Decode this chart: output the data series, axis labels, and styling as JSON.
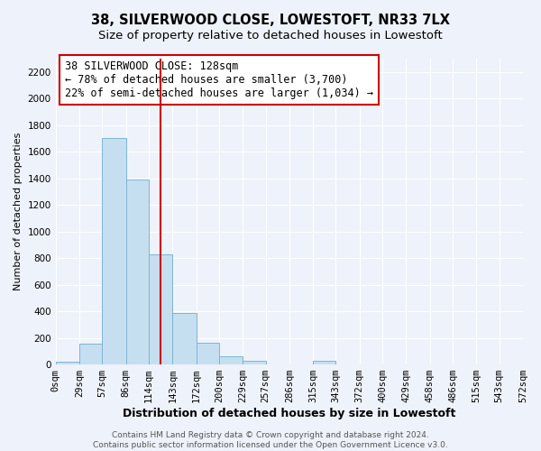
{
  "title": "38, SILVERWOOD CLOSE, LOWESTOFT, NR33 7LX",
  "subtitle": "Size of property relative to detached houses in Lowestoft",
  "xlabel": "Distribution of detached houses by size in Lowestoft",
  "ylabel": "Number of detached properties",
  "bar_edges": [
    0,
    29,
    57,
    86,
    114,
    143,
    172,
    200,
    229,
    257,
    286,
    315,
    343,
    372,
    400,
    429,
    458,
    486,
    515,
    543,
    572
  ],
  "bar_heights": [
    20,
    155,
    1700,
    1390,
    830,
    390,
    165,
    65,
    30,
    0,
    0,
    30,
    0,
    0,
    0,
    0,
    0,
    0,
    0,
    0
  ],
  "bar_color": "#c5dff0",
  "bar_edge_color": "#7fb4d4",
  "property_size": 128,
  "vline_color": "#cc0000",
  "annotation_text": "38 SILVERWOOD CLOSE: 128sqm\n← 78% of detached houses are smaller (3,700)\n22% of semi-detached houses are larger (1,034) →",
  "annotation_box_color": "white",
  "annotation_box_edge_color": "#cc0000",
  "ylim": [
    0,
    2300
  ],
  "yticks": [
    0,
    200,
    400,
    600,
    800,
    1000,
    1200,
    1400,
    1600,
    1800,
    2000,
    2200
  ],
  "xtick_labels": [
    "0sqm",
    "29sqm",
    "57sqm",
    "86sqm",
    "114sqm",
    "143sqm",
    "172sqm",
    "200sqm",
    "229sqm",
    "257sqm",
    "286sqm",
    "315sqm",
    "343sqm",
    "372sqm",
    "400sqm",
    "429sqm",
    "458sqm",
    "486sqm",
    "515sqm",
    "543sqm",
    "572sqm"
  ],
  "footer_text": "Contains HM Land Registry data © Crown copyright and database right 2024.\nContains public sector information licensed under the Open Government Licence v3.0.",
  "bg_color": "#eef2fa",
  "grid_color": "white",
  "title_fontsize": 10.5,
  "subtitle_fontsize": 9.5,
  "xlabel_fontsize": 9,
  "ylabel_fontsize": 8,
  "tick_fontsize": 7.5,
  "annotation_fontsize": 8.5,
  "footer_fontsize": 6.5
}
